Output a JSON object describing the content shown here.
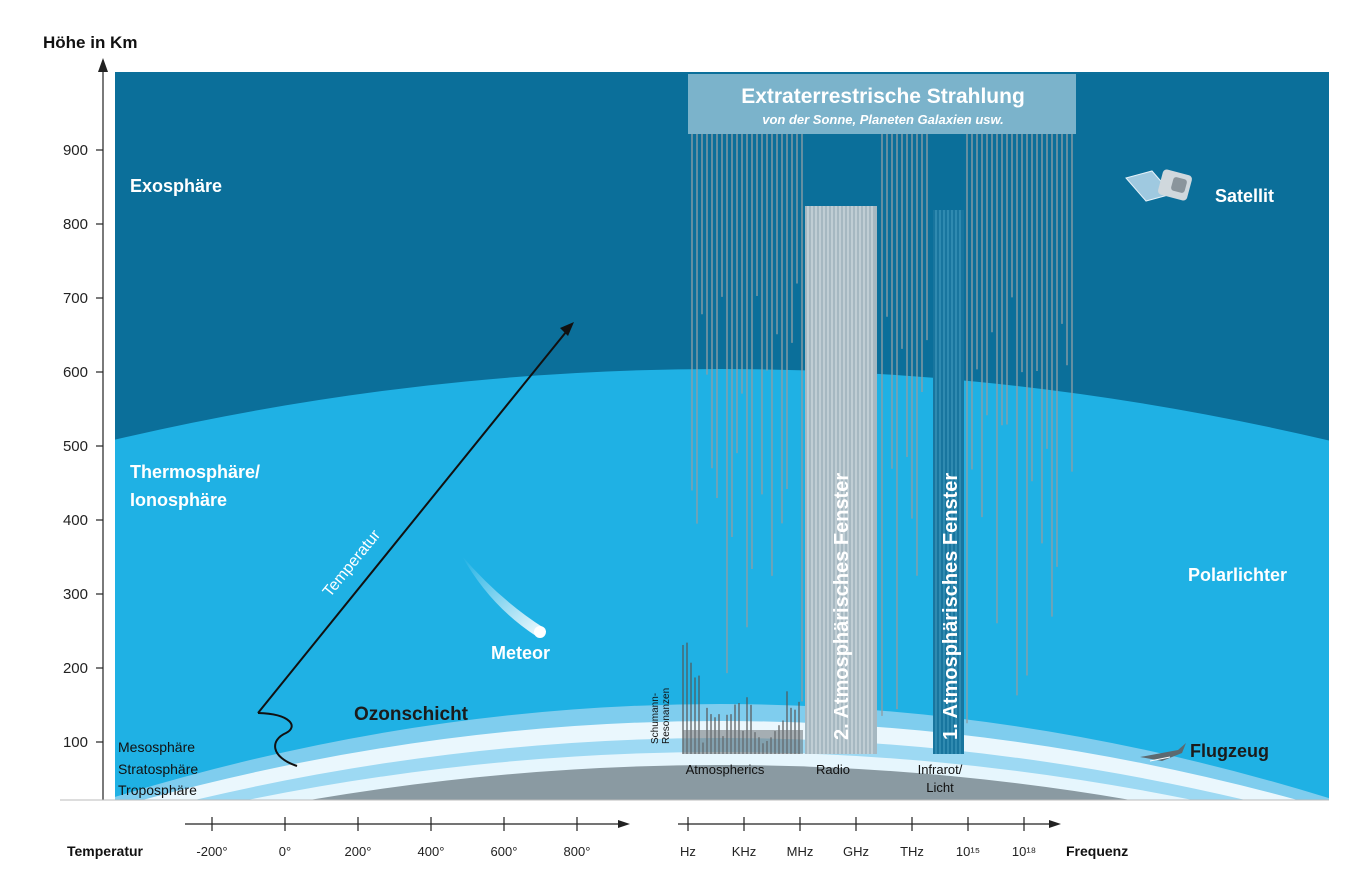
{
  "y_axis": {
    "title": "Höhe in Km",
    "ticks": [
      "900",
      "800",
      "700",
      "600",
      "500",
      "400",
      "300",
      "200",
      "100"
    ]
  },
  "temperature_axis": {
    "label": "Temperatur",
    "ticks": [
      "-200°",
      "0°",
      "200°",
      "400°",
      "600°",
      "800°"
    ]
  },
  "frequency_axis": {
    "label": "Frequenz",
    "ticks": [
      "Hz",
      "KHz",
      "MHz",
      "GHz",
      "THz",
      "10¹⁵",
      "10¹⁸"
    ]
  },
  "layers": {
    "exosphere": "Exosphäre",
    "thermosphere_line1": "Thermosphäre/",
    "thermosphere_line2": "Ionosphäre",
    "ozone": "Ozonschicht",
    "mesosphere": "Mesosphäre",
    "stratosphere": "Stratosphäre",
    "troposphere": "Troposphäre"
  },
  "labels": {
    "temperature_curve": "Temperatur",
    "meteor": "Meteor",
    "satellite": "Satellit",
    "aurora": "Polarlichter",
    "airplane": "Flugzeug",
    "schumann_line1": "Schumann-",
    "schumann_line2": "Resonanzen"
  },
  "radiation": {
    "title": "Extraterrestrische Strahlung",
    "subtitle": "von der Sonne, Planeten Galaxien usw."
  },
  "windows": {
    "radio": "2. Atmosphärisches Fenster",
    "optical": "1. Atmosphärisches Fenster"
  },
  "bands": {
    "atmospherics": "Atmospherics",
    "radio": "Radio",
    "infrared_line1": "Infrarot/",
    "infrared_line2": "Licht"
  },
  "colors": {
    "exosphere": "#0b6f9a",
    "thermosphere": "#1fb1e4",
    "ozone_band": "#8fd4f1",
    "ground": "#8a9aa2",
    "radio_window": "#a6b8c1",
    "optical_window": "#18759e"
  }
}
